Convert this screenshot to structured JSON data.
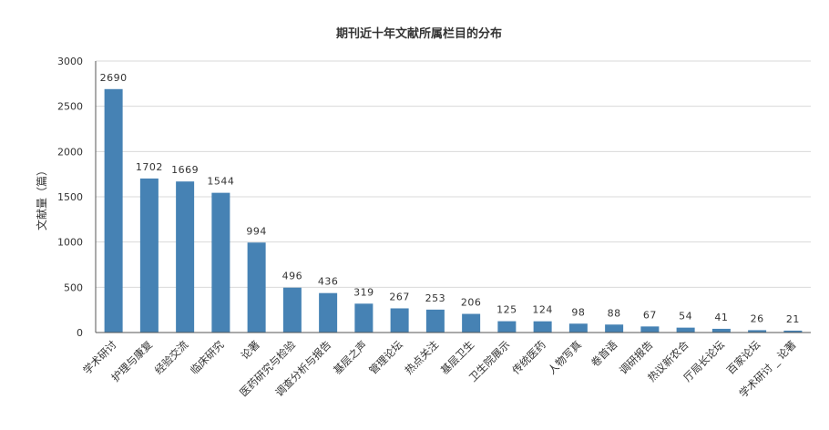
{
  "chart_data": {
    "type": "bar",
    "title": "期刊近十年文献所属栏目的分布",
    "ylabel": "文献量（篇）",
    "xlabel": "",
    "ylim": [
      0,
      3000
    ],
    "yticks": [
      0,
      500,
      1000,
      1500,
      2000,
      2500,
      3000
    ],
    "grid": true,
    "bar_color": "#4682b4",
    "categories": [
      "学术研讨",
      "护理与康复",
      "经验交流",
      "临床研究",
      "论著",
      "医药研究与检验",
      "调查分析与报告",
      "基层之声",
      "管理论坛",
      "热点关注",
      "基层卫生",
      "卫生院展示",
      "传统医药",
      "人物写真",
      "卷首语",
      "调研报告",
      "热议新农合",
      "厅局长论坛",
      "百家论坛",
      "学术研讨 _ 论著"
    ],
    "values": [
      2690,
      1702,
      1669,
      1544,
      994,
      496,
      436,
      319,
      267,
      253,
      206,
      125,
      124,
      98,
      88,
      67,
      54,
      41,
      26,
      21
    ]
  }
}
